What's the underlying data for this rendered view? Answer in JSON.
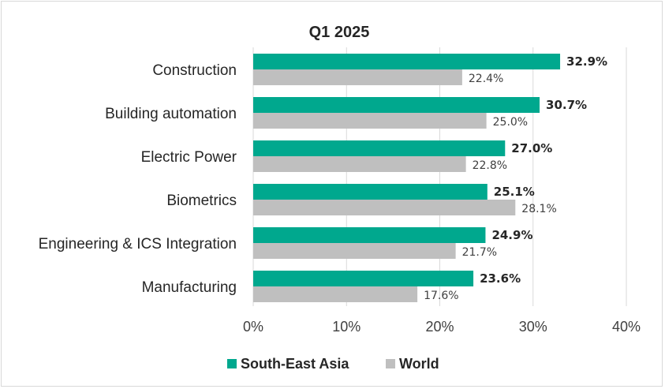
{
  "chart_data": {
    "type": "bar",
    "orientation": "horizontal",
    "title": "Q1 2025",
    "categories": [
      "Construction",
      "Building automation",
      "Electric Power",
      "Biometrics",
      "Engineering & ICS Integration",
      "Manufacturing"
    ],
    "series": [
      {
        "name": "South-East Asia",
        "color": "#00a88e",
        "values": [
          32.9,
          30.7,
          27.0,
          25.1,
          24.9,
          23.6
        ],
        "labels": [
          "32.9%",
          "30.7%",
          "27.0%",
          "25.1%",
          "24.9%",
          "23.6%"
        ]
      },
      {
        "name": "World",
        "color": "#bfbfbf",
        "values": [
          22.4,
          25.0,
          22.8,
          28.1,
          21.7,
          17.6
        ],
        "labels": [
          "22.4%",
          "25.0%",
          "22.8%",
          "28.1%",
          "21.7%",
          "17.6%"
        ]
      }
    ],
    "xlim": [
      0,
      40
    ],
    "xticks": [
      "0%",
      "10%",
      "20%",
      "30%",
      "40%"
    ],
    "grid": true,
    "legend": "bottom"
  }
}
